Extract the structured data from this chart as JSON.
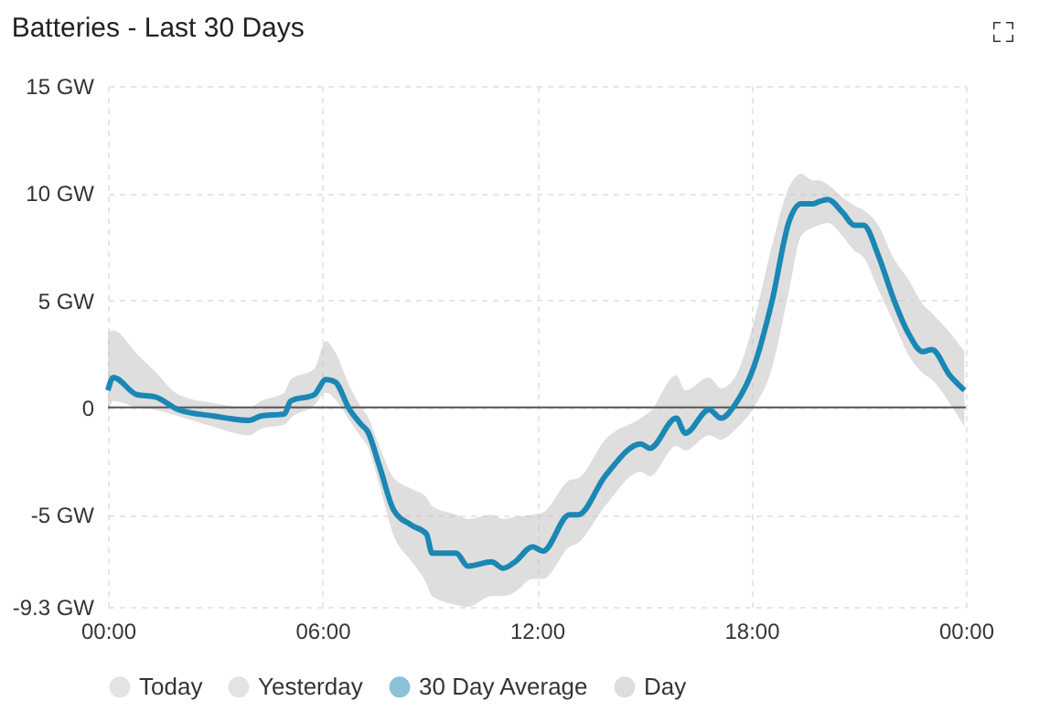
{
  "chart_data": {
    "type": "line",
    "title": "Batteries - Last 30 Days",
    "x": [
      0,
      0.15,
      0.81,
      1.31,
      1.97,
      2.96,
      3.95,
      4.28,
      4.94,
      5.11,
      5.77,
      6.1,
      6.35,
      6.76,
      7.09,
      7.26,
      7.59,
      8.0,
      8.5,
      8.91,
      9.07,
      9.74,
      10.07,
      10.73,
      11.06,
      11.39,
      11.88,
      12.17,
      12.91,
      13.16,
      13.91,
      14.91,
      15.16,
      15.9,
      16.15,
      16.82,
      17.15,
      17.57,
      18.07,
      18.57,
      19.06,
      19.39,
      19.72,
      19.89,
      20.14,
      20.55,
      20.89,
      21.14,
      21.55,
      21.97,
      22.38,
      22.8,
      23.05,
      23.55,
      23.96
    ],
    "series": [
      {
        "name": "Today",
        "color": "#c8c8c8",
        "values": [
          null,
          null,
          null,
          null,
          null,
          null,
          null,
          null,
          null,
          null,
          null,
          null,
          null,
          null,
          null,
          null,
          null,
          null,
          null,
          null,
          null,
          null,
          null,
          null,
          null,
          null,
          null,
          null,
          null,
          null,
          null,
          null,
          null,
          null,
          null,
          null,
          null,
          null,
          null,
          null,
          null,
          null,
          null,
          null,
          null,
          null,
          null,
          null,
          null,
          null,
          null,
          null,
          null,
          null,
          null
        ]
      },
      {
        "name": "Yesterday",
        "color": "#c8c8c8",
        "values": [
          null,
          null,
          null,
          null,
          null,
          null,
          null,
          null,
          null,
          null,
          null,
          null,
          null,
          null,
          null,
          null,
          null,
          null,
          null,
          null,
          null,
          null,
          null,
          null,
          null,
          null,
          null,
          null,
          null,
          null,
          null,
          null,
          null,
          null,
          null,
          null,
          null,
          null,
          null,
          null,
          null,
          null,
          null,
          null,
          null,
          null,
          null,
          null,
          null,
          null,
          null,
          null,
          null,
          null,
          null
        ]
      },
      {
        "name": "30 Day Average",
        "color": "#1a87b4",
        "values": [
          0.8,
          1.4,
          0.6,
          0.5,
          -0.1,
          -0.4,
          -0.6,
          -0.4,
          -0.3,
          0.3,
          0.6,
          1.3,
          1.2,
          -0.1,
          -0.8,
          -1.1,
          -2.7,
          -4.8,
          -5.5,
          -5.9,
          -6.8,
          -6.8,
          -7.4,
          -7.2,
          -7.5,
          -7.2,
          -6.5,
          -6.7,
          -5.0,
          -5.0,
          -3.2,
          -1.7,
          -1.9,
          -0.5,
          -1.2,
          -0.1,
          -0.5,
          0.2,
          1.9,
          4.9,
          8.7,
          9.5,
          9.5,
          9.6,
          9.7,
          9.1,
          8.5,
          8.5,
          7.1,
          5.1,
          3.5,
          2.6,
          2.7,
          1.5,
          0.8
        ]
      },
      {
        "name": "Day",
        "color": "#bdbdbd",
        "values": [
          null,
          null,
          null,
          null,
          null,
          null,
          null,
          null,
          null,
          null,
          null,
          null,
          null,
          null,
          null,
          null,
          null,
          null,
          null,
          null,
          null,
          null,
          null,
          null,
          null,
          null,
          null,
          null,
          null,
          null,
          null,
          null,
          null,
          null,
          null,
          null,
          null,
          null,
          null,
          null,
          null,
          null,
          null,
          null,
          null,
          null,
          null,
          null,
          null,
          null,
          null,
          null,
          null,
          null,
          null
        ],
        "lower": [
          -0.3,
          0.3,
          0.0,
          -0.1,
          -0.4,
          -0.9,
          -1.3,
          -1.0,
          -0.8,
          -0.5,
          0.1,
          0.7,
          0.4,
          -0.6,
          -1.4,
          -1.8,
          -3.6,
          -6.0,
          -7.2,
          -8.2,
          -8.8,
          -9.2,
          -9.3,
          -8.8,
          -8.8,
          -8.6,
          -8.0,
          -8.0,
          -6.5,
          -6.3,
          -4.6,
          -3.0,
          -3.2,
          -1.8,
          -2.0,
          -1.3,
          -1.5,
          -1.0,
          0.0,
          1.8,
          5.5,
          8.0,
          8.4,
          8.5,
          8.6,
          8.0,
          7.3,
          7.0,
          5.5,
          4.0,
          2.5,
          1.6,
          1.3,
          0.2,
          -0.9
        ],
        "upper": [
          3.5,
          3.6,
          2.5,
          1.7,
          0.6,
          0.2,
          0.0,
          0.3,
          0.7,
          1.3,
          1.8,
          3.1,
          2.6,
          1.0,
          0.0,
          -0.4,
          -1.8,
          -3.3,
          -3.8,
          -4.2,
          -4.6,
          -5.0,
          -5.2,
          -5.0,
          -5.2,
          -5.1,
          -5.0,
          -4.9,
          -3.4,
          -3.3,
          -1.5,
          -0.5,
          -0.2,
          1.5,
          0.8,
          1.4,
          0.9,
          1.5,
          4.0,
          7.5,
          10.3,
          10.9,
          10.6,
          10.6,
          10.4,
          9.8,
          9.4,
          9.2,
          8.5,
          7.0,
          6.0,
          4.8,
          4.4,
          3.5,
          2.6
        ]
      }
    ],
    "xlim": [
      0,
      24
    ],
    "xticks": [
      {
        "value": 0,
        "label": "00:00"
      },
      {
        "value": 6,
        "label": "06:00"
      },
      {
        "value": 12,
        "label": "12:00"
      },
      {
        "value": 18,
        "label": "18:00"
      },
      {
        "value": 24,
        "label": "00:00"
      }
    ],
    "ylim": [
      -9.3,
      15
    ],
    "yticks": [
      {
        "value": -9.3,
        "label": "-9.3 GW"
      },
      {
        "value": -5,
        "label": "-5 GW"
      },
      0,
      {
        "value": 5,
        "label": "5 GW"
      },
      {
        "value": 10,
        "label": "10 GW"
      },
      {
        "value": 15,
        "label": "15 GW"
      }
    ],
    "ref_lines": [
      {
        "axis": "y",
        "value": 0,
        "color": "#555555"
      }
    ],
    "grid": true,
    "legend": "bottom",
    "marker": "none",
    "line_style": "solid"
  }
}
